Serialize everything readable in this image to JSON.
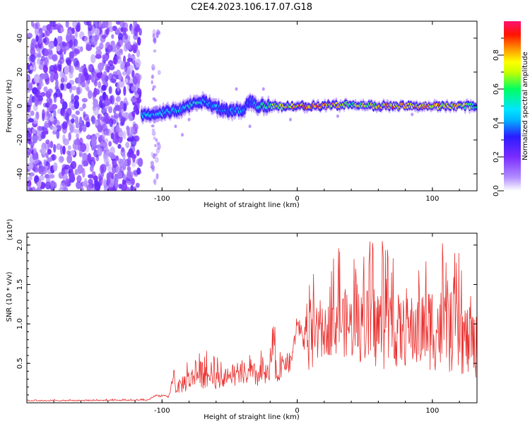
{
  "title": "C2E4.2023.106.17.07.G18",
  "chart_data": [
    {
      "type": "heatmap",
      "name": "spectrogram",
      "xlabel": "Height of straight line (km)",
      "ylabel": "Frequency (Hz)",
      "xlim": [
        -200,
        133
      ],
      "ylim": [
        -50,
        50
      ],
      "xticks": [
        -100,
        0,
        100
      ],
      "yticks": [
        -40,
        -20,
        0,
        20,
        40
      ],
      "xtick_labels": [
        "-100",
        "0",
        "100"
      ],
      "ytick_labels": [
        "-40",
        "-20",
        "0",
        "20",
        "40"
      ],
      "colorbar": {
        "label": "Normalized spectral amplitude",
        "range": [
          0,
          1
        ],
        "ticks": [
          0.0,
          0.2,
          0.4,
          0.6,
          0.8
        ],
        "tick_labels": [
          "0.0",
          "0.2",
          "0.4",
          "0.6",
          "0.8"
        ],
        "colors": [
          "#ffffff",
          "#b08cff",
          "#7a2cff",
          "#2a1cff",
          "#00e5ff",
          "#00ff60",
          "#c8ff00",
          "#ffff00",
          "#ff9000",
          "#ff1500",
          "#ff1070"
        ]
      },
      "noise_region_x": [
        -200,
        -116
      ],
      "signal_trace": {
        "x": [
          -115,
          -100,
          -85,
          -75,
          -70,
          -60,
          -50,
          -40,
          -35,
          -30,
          -20,
          -10,
          0,
          20,
          40,
          60,
          80,
          100,
          120,
          133
        ],
        "freq": [
          -5,
          -4,
          -2,
          2,
          3,
          -1,
          -3,
          -2,
          3,
          0,
          0,
          0,
          0,
          0,
          1,
          0,
          0,
          0,
          0,
          0
        ],
        "amplitude": [
          0.55,
          0.5,
          0.55,
          0.6,
          0.5,
          0.5,
          0.45,
          0.5,
          0.4,
          0.55,
          0.75,
          0.85,
          0.9,
          0.95,
          0.8,
          0.9,
          0.95,
          0.9,
          0.85,
          0.6
        ]
      }
    },
    {
      "type": "line",
      "name": "snr",
      "xlabel": "Height of straight line (km)",
      "ylabel": "SNR (10 * v/v)",
      "multiplier_label": "(x10⁴)",
      "xlim": [
        -200,
        133
      ],
      "ylim": [
        0,
        21500
      ],
      "xticks": [
        -100,
        0,
        100
      ],
      "yticks": [
        5000,
        10000,
        15000,
        20000
      ],
      "xtick_labels": [
        "-100",
        "0",
        "100"
      ],
      "ytick_labels": [
        "0.5",
        "1.0",
        "1.5",
        "2.0"
      ],
      "color": "#e8312f",
      "envelope": {
        "x": [
          -200,
          -110,
          -105,
          -95,
          -91,
          -90,
          -85,
          -75,
          -70,
          -60,
          -50,
          -45,
          -40,
          -30,
          -20,
          -18,
          -15,
          -10,
          -5,
          0,
          5,
          10,
          20,
          30,
          40,
          60,
          80,
          100,
          120,
          133
        ],
        "base": [
          200,
          250,
          800,
          600,
          3200,
          1200,
          1200,
          1800,
          1800,
          1800,
          2200,
          2000,
          2400,
          1800,
          2000,
          5000,
          1800,
          4000,
          3500,
          9000,
          6500,
          3000,
          6000,
          6000,
          5500,
          4000,
          4500,
          4000,
          3500,
          3000
        ],
        "peak": [
          400,
          500,
          1200,
          1000,
          5500,
          2500,
          5000,
          6500,
          7500,
          6000,
          4500,
          5500,
          5500,
          7000,
          6500,
          14000,
          6500,
          7500,
          8000,
          11500,
          10000,
          17500,
          15000,
          20000,
          18500,
          21500,
          18000,
          21500,
          19000,
          15500
        ]
      }
    }
  ]
}
